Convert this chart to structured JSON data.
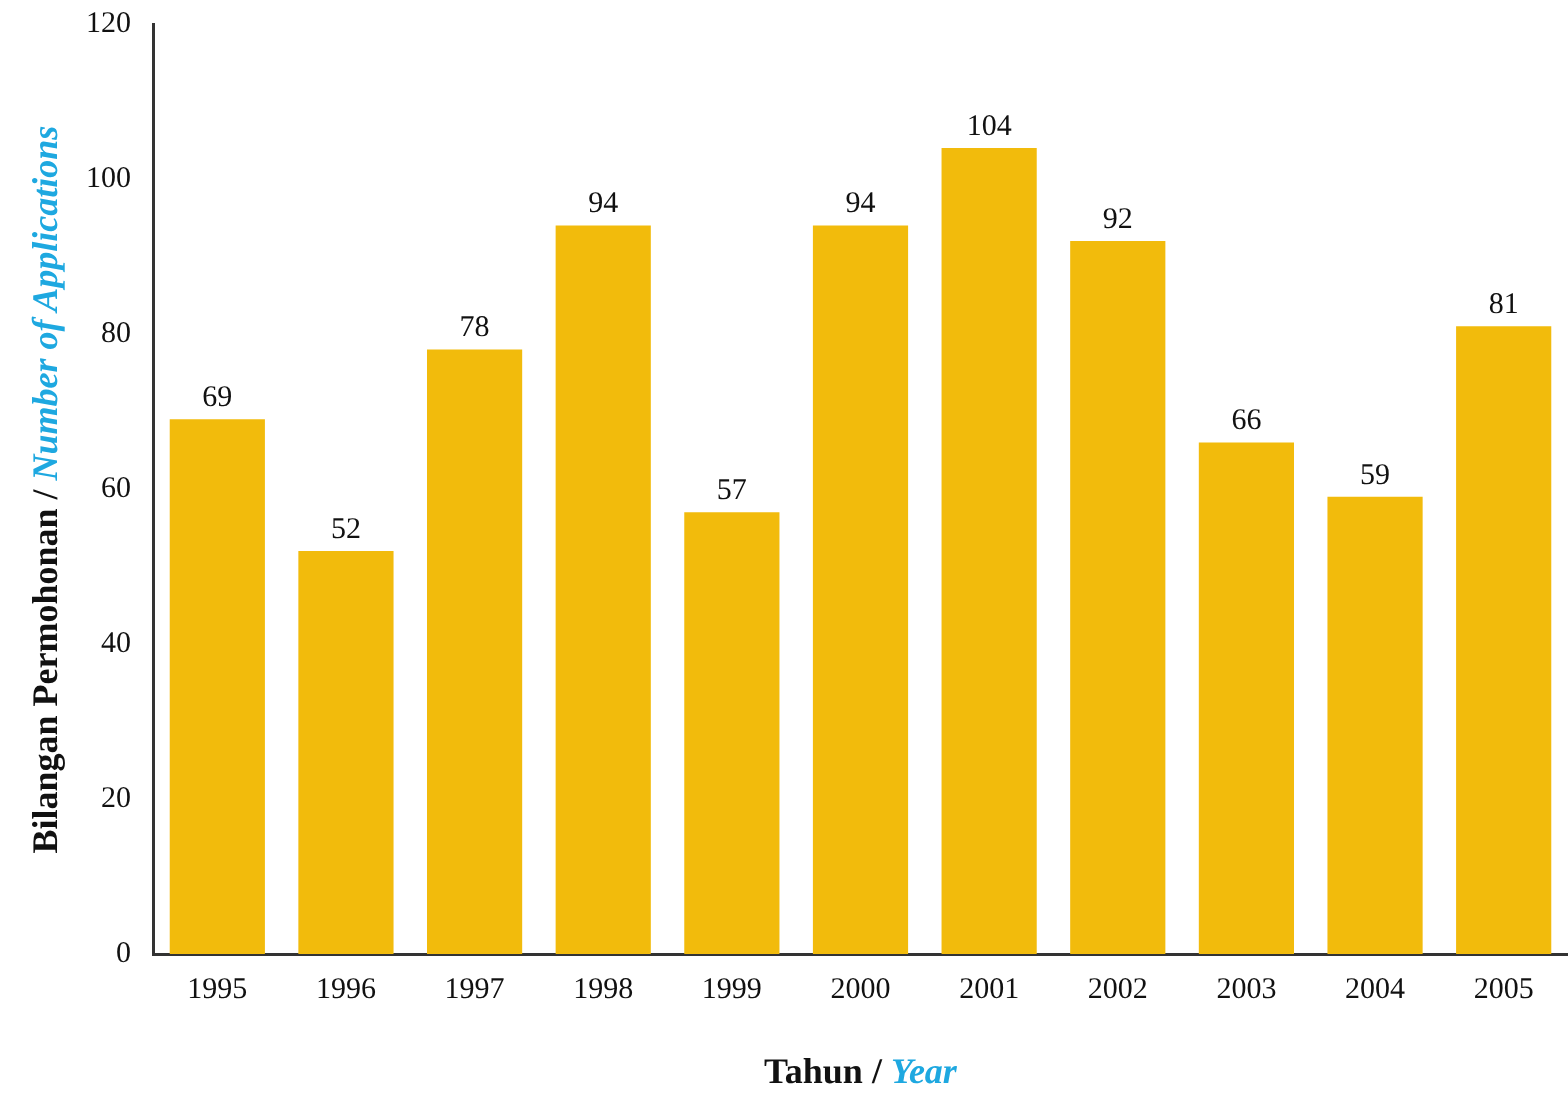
{
  "chart_data": {
    "type": "bar",
    "xlabel": "Tahun / Year",
    "ylabel": "Bilangan Permohonan / Number of Applications",
    "categories": [
      "1995",
      "1996",
      "1997",
      "1998",
      "1999",
      "2000",
      "2001",
      "2002",
      "2003",
      "2004",
      "2005"
    ],
    "values": [
      69,
      52,
      78,
      94,
      57,
      94,
      104,
      92,
      66,
      59,
      81
    ],
    "color": "#f2bb0c",
    "ylim": [
      0,
      120
    ],
    "yticks": [
      0,
      20,
      40,
      60,
      80,
      100,
      120
    ],
    "grid": false,
    "legend": false,
    "data_labels": true
  }
}
